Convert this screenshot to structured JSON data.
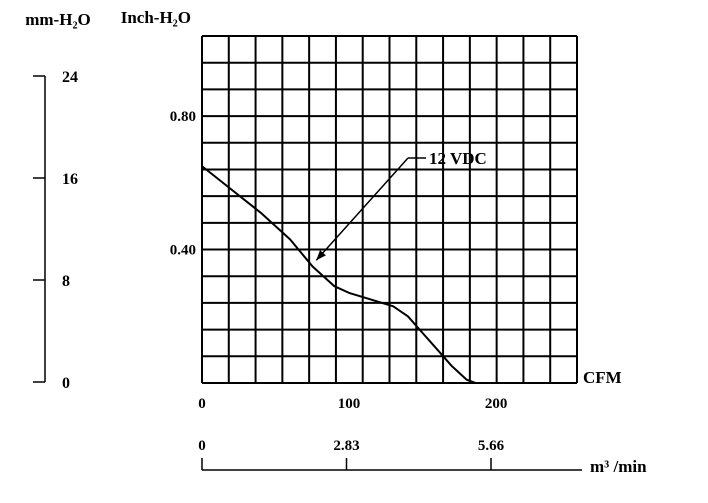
{
  "chart_data": {
    "type": "line",
    "title": "",
    "xlabel": "CFM",
    "ylabel": "Inch-H₂O",
    "xlim": [
      0,
      255
    ],
    "ylim": [
      0,
      1.04
    ],
    "x_ticks": [
      "0",
      "100",
      "200"
    ],
    "y_ticks": [
      "0.40",
      "0.80"
    ],
    "grid": true,
    "series": [
      {
        "name": "12 VDC",
        "x": [
          0,
          20,
          40,
          60,
          75,
          90,
          100,
          115,
          130,
          140,
          150,
          160,
          170,
          180,
          186
        ],
        "y": [
          0.65,
          0.58,
          0.51,
          0.43,
          0.35,
          0.29,
          0.27,
          0.25,
          0.23,
          0.2,
          0.15,
          0.1,
          0.05,
          0.01,
          0
        ]
      }
    ],
    "annotation": {
      "text": "12 VDC",
      "points_to_x": 75
    },
    "secondary_y_axis": {
      "label": "mm-H₂O",
      "ticks": [
        "0",
        "8",
        "16",
        "24"
      ],
      "values": [
        0,
        8,
        16,
        24
      ]
    },
    "secondary_x_axis": {
      "label": "m³ /min",
      "ticks": [
        "0",
        "2.83",
        "5.66"
      ],
      "values": [
        0,
        2.83,
        5.66
      ]
    }
  }
}
